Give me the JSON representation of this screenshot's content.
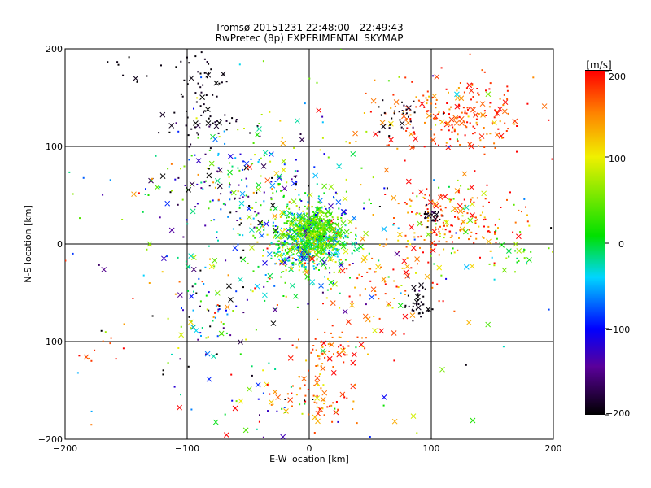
{
  "chart_data": {
    "type": "scatter",
    "title_line1": "Tromsø 20151231 22:48:00—22:49:43",
    "title_line2": "RwPretec (8p) EXPERIMENTAL SKYMAP",
    "xlabel": "E-W location [km]",
    "ylabel": "N-S location [km]",
    "xlim": [
      -200,
      200
    ],
    "ylim": [
      -200,
      200
    ],
    "x_ticks": [
      "−200",
      "−100",
      "0",
      "100",
      "200"
    ],
    "y_ticks": [
      "−200",
      "−100",
      "0",
      "100",
      "200"
    ],
    "grid_x": [
      -100,
      0,
      100
    ],
    "grid_y": [
      -100,
      0,
      100
    ],
    "markers": [
      "cross (x)",
      "dot (·)"
    ],
    "colorbar": {
      "label": "[m/s]",
      "min": -200,
      "max": 200,
      "ticks": [
        "200",
        "100",
        "0",
        "−100",
        "−200"
      ],
      "stops": [
        "#000000",
        "#5a009a",
        "#0000ff",
        "#00d6ff",
        "#00e000",
        "#f0f000",
        "#ff8000",
        "#ff0000"
      ]
    },
    "clusters": [
      {
        "name": "center",
        "x": 0,
        "y": 5,
        "sx": 18,
        "sy": 18,
        "n": 700,
        "v": 10,
        "vs": 70
      },
      {
        "name": "center-core",
        "x": 5,
        "y": 15,
        "sx": 10,
        "sy": 10,
        "n": 250,
        "v": 40,
        "vs": 25
      },
      {
        "name": "ne-upper",
        "x": 110,
        "y": 128,
        "sx": 28,
        "sy": 18,
        "n": 160,
        "v": 175,
        "vs": 30
      },
      {
        "name": "ne-far",
        "x": 140,
        "y": 140,
        "sx": 25,
        "sy": 20,
        "n": 60,
        "v": 180,
        "vs": 25
      },
      {
        "name": "ne-upper-black",
        "x": 72,
        "y": 130,
        "sx": 10,
        "sy": 10,
        "n": 30,
        "v": -190,
        "vs": 10
      },
      {
        "name": "e-mid",
        "x": 115,
        "y": 25,
        "sx": 25,
        "sy": 18,
        "n": 200,
        "v": 160,
        "vs": 50
      },
      {
        "name": "e-mid-black",
        "x": 100,
        "y": 27,
        "sx": 6,
        "sy": 5,
        "n": 25,
        "v": -190,
        "vs": 10
      },
      {
        "name": "e-right-green",
        "x": 170,
        "y": -15,
        "sx": 15,
        "sy": 10,
        "n": 30,
        "v": 30,
        "vs": 40
      },
      {
        "name": "se-red",
        "x": 50,
        "y": -40,
        "sx": 30,
        "sy": 25,
        "n": 90,
        "v": 160,
        "vs": 40
      },
      {
        "name": "se-black",
        "x": 90,
        "y": -62,
        "sx": 5,
        "sy": 8,
        "n": 40,
        "v": -195,
        "vs": 5
      },
      {
        "name": "s-red",
        "x": 20,
        "y": -110,
        "sx": 15,
        "sy": 10,
        "n": 60,
        "v": 170,
        "vs": 30
      },
      {
        "name": "s-low-red",
        "x": 10,
        "y": -155,
        "sx": 15,
        "sy": 15,
        "n": 60,
        "v": 170,
        "vs": 30
      },
      {
        "name": "w-upper-mix",
        "x": -60,
        "y": 60,
        "sx": 35,
        "sy": 30,
        "n": 220,
        "v": -60,
        "vs": 100
      },
      {
        "name": "nw-black",
        "x": -85,
        "y": 170,
        "sx": 10,
        "sy": 15,
        "n": 40,
        "v": -195,
        "vs": 5
      },
      {
        "name": "nw-mid",
        "x": -85,
        "y": 125,
        "sx": 15,
        "sy": 10,
        "n": 40,
        "v": -190,
        "vs": 10
      },
      {
        "name": "nw-top",
        "x": -150,
        "y": 185,
        "sx": 12,
        "sy": 10,
        "n": 10,
        "v": -195,
        "vs": 5
      },
      {
        "name": "w-lower",
        "x": -80,
        "y": -60,
        "sx": 30,
        "sy": 40,
        "n": 120,
        "v": -20,
        "vs": 120
      },
      {
        "name": "sw-far",
        "x": -170,
        "y": -110,
        "sx": 15,
        "sy": 10,
        "n": 10,
        "v": 180,
        "vs": 20
      },
      {
        "name": "s-center",
        "x": -40,
        "y": -160,
        "sx": 25,
        "sy": 20,
        "n": 40,
        "v": 20,
        "vs": 140
      },
      {
        "name": "scatter-bg",
        "x": 0,
        "y": 0,
        "sx": 100,
        "sy": 100,
        "n": 200,
        "v": 0,
        "vs": 130
      }
    ]
  }
}
